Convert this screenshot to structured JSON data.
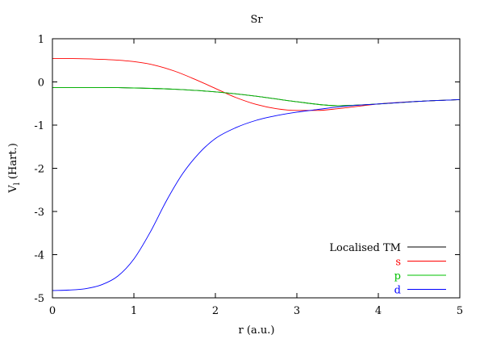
{
  "chart_data": {
    "type": "line",
    "title": "Sr",
    "xlabel": "r (a.u.)",
    "ylabel_main": "V",
    "ylabel_sub": "l",
    "ylabel_tail": " (Hart.)",
    "xlim": [
      0,
      5
    ],
    "ylim": [
      -5,
      1
    ],
    "x_ticks": [
      0,
      1,
      2,
      3,
      4,
      5
    ],
    "y_ticks": [
      1,
      0,
      -1,
      -2,
      -3,
      -4,
      -5
    ],
    "legend_position": "bottom-right",
    "series": [
      {
        "name": "Localised TM",
        "color": "#000000",
        "x": [
          0,
          0.5,
          1.0,
          1.5,
          2.0,
          2.5,
          3.0,
          3.5,
          4.0,
          4.5,
          5.0
        ],
        "y": [
          -0.13,
          -0.13,
          -0.14,
          -0.17,
          -0.23,
          -0.33,
          -0.46,
          -0.55,
          -0.51,
          -0.45,
          -0.41
        ]
      },
      {
        "name": "s",
        "color": "#ff0000",
        "x": [
          0,
          0.25,
          0.5,
          0.75,
          1.0,
          1.25,
          1.5,
          1.75,
          2.0,
          2.25,
          2.5,
          2.75,
          3.0,
          3.25,
          3.5,
          4.0,
          4.5,
          5.0
        ],
        "y": [
          0.54,
          0.54,
          0.53,
          0.51,
          0.47,
          0.39,
          0.25,
          0.06,
          -0.15,
          -0.36,
          -0.52,
          -0.62,
          -0.66,
          -0.66,
          -0.62,
          -0.51,
          -0.45,
          -0.41
        ]
      },
      {
        "name": "p",
        "color": "#00c000",
        "x": [
          0,
          0.5,
          1.0,
          1.5,
          2.0,
          2.5,
          3.0,
          3.5,
          4.0,
          4.5,
          5.0
        ],
        "y": [
          -0.13,
          -0.13,
          -0.14,
          -0.17,
          -0.23,
          -0.33,
          -0.46,
          -0.55,
          -0.51,
          -0.45,
          -0.41
        ]
      },
      {
        "name": "d",
        "color": "#0000ff",
        "x": [
          0,
          0.2,
          0.4,
          0.6,
          0.8,
          1.0,
          1.2,
          1.4,
          1.6,
          1.8,
          2.0,
          2.25,
          2.5,
          2.75,
          3.0,
          3.25,
          3.5,
          4.0,
          4.5,
          5.0
        ],
        "y": [
          -4.83,
          -4.82,
          -4.79,
          -4.7,
          -4.5,
          -4.1,
          -3.48,
          -2.75,
          -2.12,
          -1.65,
          -1.31,
          -1.06,
          -0.89,
          -0.78,
          -0.7,
          -0.64,
          -0.58,
          -0.51,
          -0.45,
          -0.41
        ]
      }
    ]
  }
}
